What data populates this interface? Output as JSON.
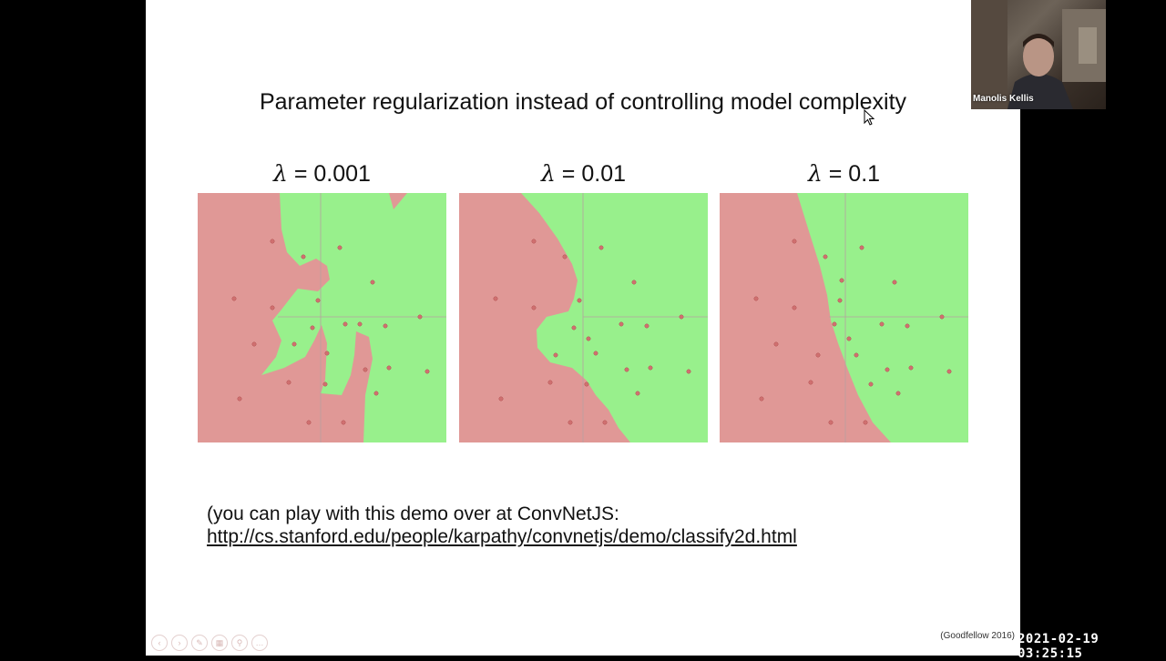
{
  "slide": {
    "title": "Parameter regularization instead of controlling model complexity",
    "panels": [
      {
        "lambda_symbol": "λ",
        "lambda_value": "= 0.001"
      },
      {
        "lambda_symbol": "λ",
        "lambda_value": "= 0.01"
      },
      {
        "lambda_symbol": "λ",
        "lambda_value": "= 0.1"
      }
    ],
    "note": "(you can play with this demo over at ConvNetJS:",
    "link": "http://cs.stanford.edu/people/karpathy/convnetjs/demo/classify2d.html",
    "citation": "(Goodfellow 2016)"
  },
  "webcam": {
    "participant_name": "Manolis Kellis"
  },
  "timestamp": "2021-02-19 03:25:15",
  "colors": {
    "red_region": "#e09896",
    "green_region": "#98f08c",
    "background": "#000000"
  },
  "icons": [
    "back-icon",
    "forward-icon",
    "pen-icon",
    "grid-icon",
    "zoom-icon",
    "more-icon",
    "mouse-pointer-icon"
  ]
}
